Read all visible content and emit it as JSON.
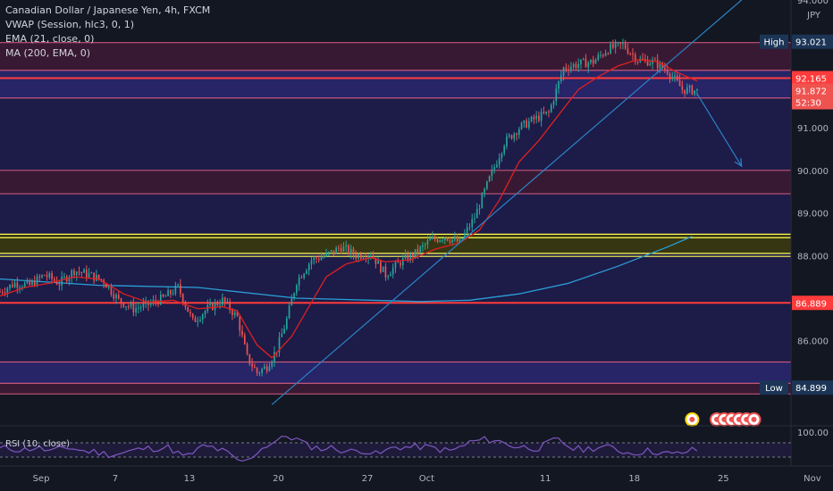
{
  "legend": {
    "title": "Canadian Dollar / Japanese Yen, 4h, FXCM",
    "vwap": "VWAP (Session, hlc3, 0, 1)",
    "ema": "EMA (21, close, 0)",
    "ma": "MA (200, EMA, 0)"
  },
  "rsi_label": "RSI (10, close)",
  "rsi_axis_label": "100.00",
  "colors": {
    "background": "#131722",
    "zone_fill": "#1f1c4d",
    "zone_red_fill": "#3d1a35",
    "red_line": "#ff3b3b",
    "pink_line": "#c4557a",
    "yellow_line": "#ffff55",
    "trend_blue": "#2a83c7",
    "ma_blue": "#2a9fd6",
    "ema_red": "#e02020",
    "candle_up": "#26a69a",
    "candle_down": "#ef5350",
    "rsi": "#7e57c2",
    "high_low_label": "#1c3556"
  },
  "chart_data": {
    "type": "candlestick",
    "title": "Canadian Dollar / Japanese Yen, 4h, FXCM",
    "currency": "JPY",
    "ylim": [
      84.4,
      94.0
    ],
    "y_ticks": [
      86.0,
      88.0,
      89.0,
      90.0,
      91.0,
      94.0
    ],
    "y_tick_labels": [
      "86.000",
      "88.000",
      "89.000",
      "90.000",
      "91.000",
      "94.000"
    ],
    "x_tick_labels": [
      {
        "label": "Sep",
        "i": 0
      },
      {
        "label": "7",
        "i": 30
      },
      {
        "label": "13",
        "i": 60
      },
      {
        "label": "20",
        "i": 96
      },
      {
        "label": "27",
        "i": 132
      },
      {
        "label": "Oct",
        "i": 156
      },
      {
        "label": "11",
        "i": 204
      },
      {
        "label": "18",
        "i": 240
      },
      {
        "label": "25",
        "i": 276
      },
      {
        "label": "Nov",
        "i": 312
      }
    ],
    "bars_total": 320,
    "last_bar_index": 282,
    "price_labels": [
      {
        "text": "High",
        "value": "93.021",
        "level": 93.021,
        "kind": "highlow"
      },
      {
        "text": "",
        "value": "92.165",
        "level": 92.165,
        "kind": "red"
      },
      {
        "text": "",
        "value": "91.872",
        "level": 91.872,
        "kind": "last"
      },
      {
        "text": "",
        "value": "52:30",
        "level": 91.6,
        "kind": "countdown"
      },
      {
        "text": "",
        "value": "86.889",
        "level": 86.889,
        "kind": "red"
      },
      {
        "text": "Low",
        "value": "84.899",
        "level": 84.899,
        "kind": "highlow"
      }
    ],
    "zones": [
      {
        "top": 93.0,
        "bottom": 92.35,
        "type": "red"
      },
      {
        "top": 92.35,
        "bottom": 91.7,
        "type": "blue"
      },
      {
        "top": 91.7,
        "bottom": 90.0,
        "type": "dark"
      },
      {
        "top": 90.0,
        "bottom": 89.45,
        "type": "red"
      },
      {
        "top": 89.45,
        "bottom": 88.5,
        "type": "dark"
      },
      {
        "top": 88.5,
        "bottom": 88.05,
        "type": "yellow"
      },
      {
        "top": 88.05,
        "bottom": 86.9,
        "type": "dark"
      },
      {
        "top": 86.9,
        "bottom": 85.5,
        "type": "dark"
      },
      {
        "top": 85.5,
        "bottom": 85.0,
        "type": "blue"
      },
      {
        "top": 85.0,
        "bottom": 84.75,
        "type": "red"
      }
    ],
    "lines": [
      {
        "level": 93.0,
        "type": "pink"
      },
      {
        "level": 92.35,
        "type": "pink"
      },
      {
        "level": 92.165,
        "type": "red"
      },
      {
        "level": 91.7,
        "type": "pink"
      },
      {
        "level": 90.0,
        "type": "pink"
      },
      {
        "level": 89.45,
        "type": "pink"
      },
      {
        "level": 88.5,
        "type": "yellow"
      },
      {
        "level": 88.42,
        "type": "yellow"
      },
      {
        "level": 88.05,
        "type": "yellow"
      },
      {
        "level": 87.98,
        "type": "yellow"
      },
      {
        "level": 86.889,
        "type": "red"
      },
      {
        "level": 85.5,
        "type": "pink"
      },
      {
        "level": 85.0,
        "type": "pink"
      },
      {
        "level": 84.75,
        "type": "pink"
      }
    ],
    "trendline": {
      "from": {
        "i": 110,
        "y": 84.5
      },
      "to": {
        "i": 300,
        "y": 94.0
      }
    },
    "arrow": {
      "from": {
        "i": 282,
        "y": 91.8
      },
      "to": {
        "i": 300,
        "y": 90.1
      }
    },
    "close_series": [
      [
        0,
        87.15
      ],
      [
        6,
        87.35
      ],
      [
        12,
        87.3
      ],
      [
        18,
        87.55
      ],
      [
        24,
        87.35
      ],
      [
        30,
        87.65
      ],
      [
        36,
        87.55
      ],
      [
        42,
        87.4
      ],
      [
        48,
        86.95
      ],
      [
        54,
        86.75
      ],
      [
        60,
        86.85
      ],
      [
        66,
        87.0
      ],
      [
        72,
        87.25
      ],
      [
        78,
        86.45
      ],
      [
        84,
        86.75
      ],
      [
        90,
        86.95
      ],
      [
        96,
        86.55
      ],
      [
        100,
        85.6
      ],
      [
        104,
        85.25
      ],
      [
        108,
        85.4
      ],
      [
        112,
        85.8
      ],
      [
        116,
        86.5
      ],
      [
        120,
        87.4
      ],
      [
        126,
        87.9
      ],
      [
        132,
        88.0
      ],
      [
        138,
        88.2
      ],
      [
        144,
        88.0
      ],
      [
        150,
        88.05
      ],
      [
        156,
        87.55
      ],
      [
        162,
        87.85
      ],
      [
        168,
        88.05
      ],
      [
        174,
        88.35
      ],
      [
        180,
        88.45
      ],
      [
        186,
        88.3
      ],
      [
        192,
        88.9
      ],
      [
        198,
        89.8
      ],
      [
        204,
        90.65
      ],
      [
        210,
        91.0
      ],
      [
        216,
        91.2
      ],
      [
        222,
        91.35
      ],
      [
        228,
        92.4
      ],
      [
        234,
        92.5
      ],
      [
        240,
        92.55
      ],
      [
        246,
        92.85
      ],
      [
        252,
        92.95
      ],
      [
        258,
        92.6
      ],
      [
        264,
        92.55
      ],
      [
        270,
        92.35
      ],
      [
        276,
        91.9
      ],
      [
        282,
        91.87
      ]
    ],
    "ema21": [
      [
        0,
        87.05
      ],
      [
        10,
        87.25
      ],
      [
        20,
        87.35
      ],
      [
        30,
        87.5
      ],
      [
        40,
        87.45
      ],
      [
        50,
        87.1
      ],
      [
        60,
        86.9
      ],
      [
        70,
        86.95
      ],
      [
        80,
        86.75
      ],
      [
        90,
        86.8
      ],
      [
        96,
        86.7
      ],
      [
        104,
        85.9
      ],
      [
        110,
        85.6
      ],
      [
        118,
        86.1
      ],
      [
        126,
        86.9
      ],
      [
        132,
        87.5
      ],
      [
        140,
        87.8
      ],
      [
        150,
        87.95
      ],
      [
        156,
        87.85
      ],
      [
        166,
        87.9
      ],
      [
        176,
        88.15
      ],
      [
        186,
        88.3
      ],
      [
        194,
        88.6
      ],
      [
        202,
        89.3
      ],
      [
        210,
        90.2
      ],
      [
        218,
        90.7
      ],
      [
        226,
        91.3
      ],
      [
        234,
        91.9
      ],
      [
        242,
        92.2
      ],
      [
        250,
        92.45
      ],
      [
        258,
        92.6
      ],
      [
        266,
        92.55
      ],
      [
        274,
        92.3
      ],
      [
        282,
        92.1
      ]
    ],
    "ma200": [
      [
        0,
        87.45
      ],
      [
        40,
        87.3
      ],
      [
        80,
        87.25
      ],
      [
        120,
        87.0
      ],
      [
        150,
        86.95
      ],
      [
        170,
        86.92
      ],
      [
        190,
        86.95
      ],
      [
        210,
        87.1
      ],
      [
        230,
        87.35
      ],
      [
        250,
        87.75
      ],
      [
        270,
        88.2
      ],
      [
        280,
        88.45
      ]
    ],
    "event_markers": [
      {
        "i": 280,
        "y": 84.15
      },
      {
        "i": 290,
        "y": 84.15
      },
      {
        "i": 293,
        "y": 84.15
      },
      {
        "i": 296,
        "y": 84.15
      },
      {
        "i": 299,
        "y": 84.15
      },
      {
        "i": 302,
        "y": 84.15
      },
      {
        "i": 305,
        "y": 84.15
      }
    ]
  }
}
